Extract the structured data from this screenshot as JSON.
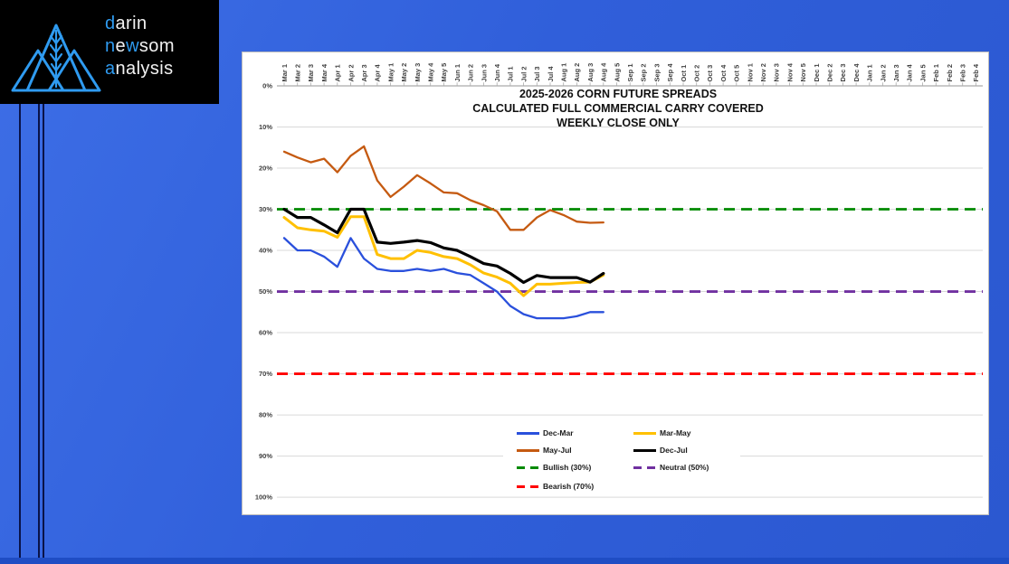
{
  "logo": {
    "accent_color": "#2F9BF0",
    "line1": {
      "a": "d",
      "b": "arin"
    },
    "line2": {
      "a": "n",
      "b": "e",
      "c": "w",
      "d": "som"
    },
    "line3": {
      "a": "a",
      "b": "nalysis"
    }
  },
  "background_color": "#2F5ED9",
  "chart_data": {
    "type": "line",
    "title_lines": [
      "2025-2026 CORN FUTURE SPREADS",
      "CALCULATED FULL COMMERCIAL CARRY COVERED",
      "WEEKLY CLOSE ONLY"
    ],
    "x_labels": [
      "Mar 1",
      "Mar 2",
      "Mar 3",
      "Mar 4",
      "Apr 1",
      "Apr 2",
      "Apr 3",
      "Apr 4",
      "May 1",
      "May 2",
      "May 3",
      "May 4",
      "May 5",
      "Jun 1",
      "Jun 2",
      "Jun 3",
      "Jun 4",
      "Jul 1",
      "Jul 2",
      "Jul 3",
      "Jul 4",
      "Aug 1",
      "Aug 2",
      "Aug 3",
      "Aug 4",
      "Aug 5",
      "Sep 1",
      "Sep 2",
      "Sep 3",
      "Sep 4",
      "Oct 1",
      "Oct 2",
      "Oct 3",
      "Oct 4",
      "Oct 5",
      "Nov 1",
      "Nov 2",
      "Nov 3",
      "Nov 4",
      "Nov 5",
      "Dec 1",
      "Dec 2",
      "Dec 3",
      "Dec 4",
      "Jan 1",
      "Jan 2",
      "Jan 3",
      "Jan 4",
      "Jan 5",
      "Feb 1",
      "Feb 2",
      "Feb 3",
      "Feb 4"
    ],
    "y_labels": [
      "0%",
      "10%",
      "20%",
      "30%",
      "40%",
      "50%",
      "60%",
      "70%",
      "80%",
      "90%",
      "100%"
    ],
    "y_axis": {
      "min": 0,
      "max": 100,
      "unit": "%",
      "inverted": true
    },
    "grid": "horizontal",
    "legend_position": "bottom-center-inside",
    "series": [
      {
        "name": "Dec-Mar",
        "color": "#2A50DC",
        "style": "solid",
        "values": [
          37,
          40,
          40,
          41.5,
          44,
          37,
          42,
          44.5,
          45,
          45,
          44.5,
          45,
          44.5,
          45.5,
          46,
          48,
          50,
          53.5,
          55.5,
          56.5,
          56.5,
          56.5,
          56,
          55,
          55
        ]
      },
      {
        "name": "Mar-May",
        "color": "#FFC000",
        "style": "solid",
        "values": [
          32,
          34.5,
          35,
          35.3,
          36.8,
          31.8,
          31.8,
          41,
          42,
          42,
          40,
          40.5,
          41.5,
          42,
          43.5,
          45.5,
          46.5,
          48,
          51,
          48.2,
          48.2,
          48,
          47.8,
          47.7,
          46
        ]
      },
      {
        "name": "May-Jul",
        "color": "#C55A11",
        "style": "solid",
        "values": [
          16,
          17.4,
          18.6,
          17.7,
          21,
          17,
          14.7,
          23,
          27,
          24.5,
          21.7,
          23.7,
          25.9,
          26.1,
          27.8,
          29,
          30.5,
          35,
          35,
          32,
          30.2,
          31.4,
          33,
          33.3,
          33.2
        ]
      },
      {
        "name": "Dec-Jul",
        "color": "#000000",
        "style": "solid",
        "values": [
          30,
          32,
          32,
          33.8,
          35.7,
          30,
          30,
          38,
          38.3,
          38,
          37.6,
          38.1,
          39.4,
          40,
          41.5,
          43.2,
          43.8,
          45.6,
          47.8,
          46.1,
          46.6,
          46.6,
          46.6,
          47.7,
          45.6
        ]
      },
      {
        "name": "Bullish (30%)",
        "color": "#008A00",
        "style": "dashed",
        "value": 30
      },
      {
        "name": "Neutral (50%)",
        "color": "#7030A0",
        "style": "dashed",
        "value": 50
      },
      {
        "name": "Bearish (70%)",
        "color": "#FF0000",
        "style": "dashed",
        "value": 70
      }
    ]
  }
}
